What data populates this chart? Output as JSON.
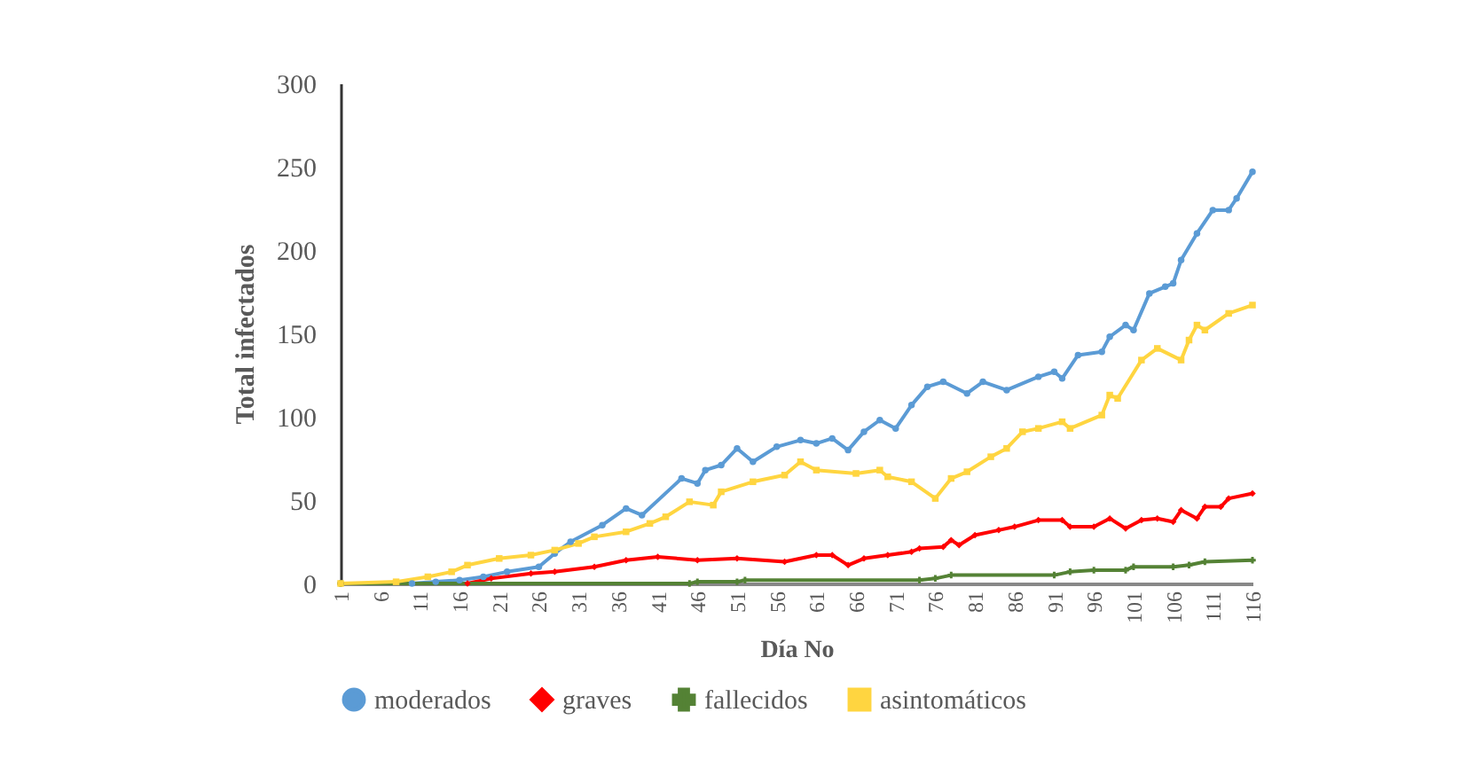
{
  "chart_data": {
    "type": "line",
    "xlabel": "Día No",
    "ylabel": "Total infectados",
    "xlim": [
      1,
      116
    ],
    "xticks": [
      1,
      6,
      11,
      16,
      21,
      26,
      31,
      36,
      41,
      46,
      51,
      56,
      61,
      66,
      71,
      76,
      81,
      86,
      91,
      96,
      101,
      106,
      111,
      116
    ],
    "ylim": [
      0,
      300
    ],
    "yticks": [
      0,
      50,
      100,
      150,
      200,
      250,
      300
    ],
    "legend": "bottom",
    "line_style": "solid",
    "series": [
      {
        "name": "moderados",
        "color": "#5b9bd5",
        "marker": "circle",
        "x": [
          1,
          10,
          13,
          16,
          19,
          22,
          26,
          28,
          30,
          34,
          37,
          39,
          44,
          46,
          47,
          49,
          51,
          53,
          56,
          59,
          61,
          63,
          65,
          67,
          69,
          71,
          73,
          75,
          77,
          80,
          82,
          85,
          89,
          91,
          92,
          94,
          97,
          98,
          100,
          101,
          103,
          105,
          106,
          107,
          109,
          111,
          113,
          114,
          116
        ],
        "values": [
          0,
          0,
          1,
          2,
          4,
          7,
          10,
          18,
          25,
          35,
          45,
          41,
          63,
          60,
          68,
          71,
          81,
          73,
          82,
          86,
          84,
          87,
          80,
          91,
          98,
          93,
          107,
          118,
          121,
          114,
          121,
          116,
          124,
          127,
          123,
          137,
          139,
          148,
          155,
          152,
          174,
          178,
          180,
          194,
          210,
          224,
          224,
          231,
          247
        ]
      },
      {
        "name": "graves",
        "color": "#ff0000",
        "marker": "diamond",
        "x": [
          1,
          17,
          20,
          25,
          28,
          33,
          37,
          41,
          46,
          51,
          57,
          61,
          63,
          65,
          67,
          70,
          73,
          74,
          77,
          78,
          79,
          81,
          84,
          86,
          89,
          92,
          93,
          96,
          98,
          100,
          102,
          104,
          106,
          107,
          109,
          110,
          112,
          113,
          116
        ],
        "values": [
          0,
          0,
          3,
          6,
          7,
          10,
          14,
          16,
          14,
          15,
          13,
          17,
          17,
          11,
          15,
          17,
          19,
          21,
          22,
          26,
          23,
          29,
          32,
          34,
          38,
          38,
          34,
          34,
          39,
          33,
          38,
          39,
          37,
          44,
          39,
          46,
          46,
          51,
          54
        ]
      },
      {
        "name": "fallecidos",
        "color": "#548235",
        "marker": "cross",
        "x": [
          1,
          45,
          46,
          51,
          52,
          74,
          76,
          78,
          91,
          93,
          96,
          100,
          101,
          106,
          108,
          110,
          116
        ],
        "values": [
          0,
          0,
          1,
          1,
          2,
          2,
          3,
          5,
          5,
          7,
          8,
          8,
          10,
          10,
          11,
          13,
          14
        ]
      },
      {
        "name": "asintomáticos",
        "color": "#ffd540",
        "marker": "square",
        "x": [
          1,
          8,
          12,
          15,
          17,
          21,
          25,
          28,
          31,
          33,
          37,
          40,
          42,
          45,
          48,
          49,
          53,
          57,
          59,
          61,
          66,
          69,
          70,
          73,
          76,
          78,
          80,
          83,
          85,
          87,
          89,
          92,
          93,
          97,
          98,
          99,
          102,
          104,
          107,
          108,
          109,
          110,
          113,
          116
        ],
        "values": [
          0,
          1,
          4,
          7,
          11,
          15,
          17,
          20,
          24,
          28,
          31,
          36,
          40,
          49,
          47,
          55,
          61,
          65,
          73,
          68,
          66,
          68,
          64,
          61,
          51,
          63,
          67,
          76,
          81,
          91,
          93,
          97,
          93,
          101,
          113,
          111,
          134,
          141,
          134,
          146,
          155,
          152,
          162,
          167
        ]
      }
    ]
  }
}
